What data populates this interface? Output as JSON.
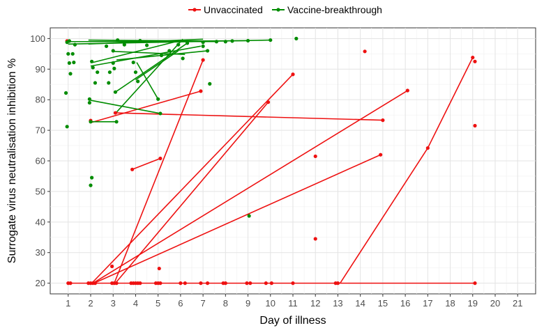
{
  "chart_data": {
    "type": "scatter",
    "xlabel": "Day of illness",
    "ylabel": "Surrogate virus neutralisation inhibition %",
    "xlim": [
      0.2,
      21.8
    ],
    "ylim": [
      16.5,
      103.5
    ],
    "x_ticks": [
      1,
      2,
      3,
      4,
      5,
      6,
      7,
      8,
      9,
      10,
      11,
      12,
      13,
      14,
      15,
      16,
      17,
      18,
      19,
      20,
      21
    ],
    "y_ticks": [
      20,
      30,
      40,
      50,
      60,
      70,
      80,
      90,
      100
    ],
    "grid": true,
    "legend_position": "top",
    "series": [
      {
        "name": "Unvaccinated",
        "color": "#ee1111",
        "points": [
          [
            1.0,
            20
          ],
          [
            1.1,
            20
          ],
          [
            1.9,
            20
          ],
          [
            2.0,
            20
          ],
          [
            2.1,
            20
          ],
          [
            2.2,
            20
          ],
          [
            2.95,
            20
          ],
          [
            3.05,
            20
          ],
          [
            3.15,
            20
          ],
          [
            3.8,
            20
          ],
          [
            3.9,
            20
          ],
          [
            4.0,
            20
          ],
          [
            4.1,
            20
          ],
          [
            4.2,
            20
          ],
          [
            4.9,
            20
          ],
          [
            5.0,
            20
          ],
          [
            5.1,
            20
          ],
          [
            6.0,
            20
          ],
          [
            6.2,
            20
          ],
          [
            6.9,
            20
          ],
          [
            7.2,
            20
          ],
          [
            7.9,
            20
          ],
          [
            8.0,
            20
          ],
          [
            8.95,
            20
          ],
          [
            9.1,
            20
          ],
          [
            9.8,
            20
          ],
          [
            10.05,
            20
          ],
          [
            11.0,
            20
          ],
          [
            12.9,
            20
          ],
          [
            13.0,
            20
          ],
          [
            19.1,
            20
          ],
          [
            2.95,
            25.5
          ],
          [
            5.05,
            24.8
          ],
          [
            3.85,
            57.2
          ],
          [
            5.1,
            60.8
          ],
          [
            12.0,
            34.5
          ],
          [
            12.0,
            61.5
          ],
          [
            14.2,
            95.8
          ],
          [
            16.1,
            83.0
          ],
          [
            19.1,
            92.5
          ],
          [
            19.1,
            71.5
          ],
          [
            19.0,
            93.8
          ],
          [
            17.0,
            64.2
          ],
          [
            14.9,
            62.0
          ],
          [
            15.0,
            73.3
          ],
          [
            11.0,
            88.3
          ],
          [
            9.9,
            79.2
          ],
          [
            7.0,
            93.0
          ],
          [
            6.9,
            82.8
          ],
          [
            2.0,
            73.2
          ],
          [
            3.1,
            75.7
          ],
          [
            0.95,
            99.2
          ]
        ],
        "segments": [
          [
            [
              2.0,
              72.5
            ],
            [
              6.9,
              82.8
            ]
          ],
          [
            [
              3.1,
              75.7
            ],
            [
              15.0,
              73.3
            ]
          ],
          [
            [
              3.85,
              57.2
            ],
            [
              5.1,
              60.8
            ]
          ],
          [
            [
              3.05,
              20
            ],
            [
              7.0,
              93.0
            ]
          ],
          [
            [
              2.05,
              20
            ],
            [
              11.0,
              88.3
            ]
          ],
          [
            [
              2.1,
              20
            ],
            [
              16.1,
              83.0
            ]
          ],
          [
            [
              2.15,
              20
            ],
            [
              14.9,
              62.0
            ]
          ],
          [
            [
              3.1,
              20
            ],
            [
              9.9,
              79.2
            ]
          ],
          [
            [
              13.1,
              20
            ],
            [
              17.0,
              64.2
            ]
          ],
          [
            [
              17.0,
              64.2
            ],
            [
              19.0,
              93.8
            ]
          ],
          [
            [
              1.0,
              20
            ],
            [
              19.1,
              20
            ]
          ]
        ]
      },
      {
        "name": "Vaccine-breakthrough",
        "color": "#008c00",
        "points": [
          [
            0.9,
            82.2
          ],
          [
            0.95,
            71.2
          ],
          [
            1.0,
            95.0
          ],
          [
            1.05,
            92.0
          ],
          [
            1.1,
            88.5
          ],
          [
            1.25,
            92.2
          ],
          [
            1.3,
            98.0
          ],
          [
            1.2,
            95.0
          ],
          [
            0.95,
            98.8
          ],
          [
            1.05,
            99.2
          ],
          [
            1.95,
            80.2
          ],
          [
            1.95,
            79.0
          ],
          [
            2.0,
            72.8
          ],
          [
            2.05,
            54.5
          ],
          [
            2.0,
            52.0
          ],
          [
            2.05,
            92.5
          ],
          [
            2.1,
            90.5
          ],
          [
            2.2,
            85.5
          ],
          [
            2.3,
            89.0
          ],
          [
            2.7,
            97.5
          ],
          [
            2.8,
            85.5
          ],
          [
            2.85,
            89.0
          ],
          [
            3.0,
            92.0
          ],
          [
            3.05,
            90.2
          ],
          [
            3.1,
            82.5
          ],
          [
            3.15,
            72.8
          ],
          [
            3.0,
            96.0
          ],
          [
            3.2,
            99.5
          ],
          [
            3.5,
            98.0
          ],
          [
            3.9,
            92.2
          ],
          [
            4.0,
            89.0
          ],
          [
            4.1,
            86.0
          ],
          [
            4.2,
            99.3
          ],
          [
            4.5,
            97.8
          ],
          [
            5.0,
            80.2
          ],
          [
            5.1,
            75.5
          ],
          [
            5.15,
            94.5
          ],
          [
            5.5,
            96.0
          ],
          [
            5.9,
            98.0
          ],
          [
            6.1,
            93.5
          ],
          [
            6.3,
            98.5
          ],
          [
            7.0,
            98.8
          ],
          [
            7.0,
            97.5
          ],
          [
            7.2,
            96.0
          ],
          [
            7.3,
            85.2
          ],
          [
            7.6,
            99.0
          ],
          [
            8.0,
            99.0
          ],
          [
            8.3,
            99.2
          ],
          [
            9.0,
            99.3
          ],
          [
            9.05,
            42.0
          ],
          [
            10.0,
            99.5
          ],
          [
            11.15,
            100.0
          ]
        ],
        "segments": [
          [
            [
              1.0,
              98.2
            ],
            [
              10.0,
              99.5
            ]
          ],
          [
            [
              1.0,
              99.0
            ],
            [
              7.6,
              99.0
            ]
          ],
          [
            [
              1.9,
              99.5
            ],
            [
              7.0,
              99.2
            ]
          ],
          [
            [
              1.9,
              98.2
            ],
            [
              7.0,
              99.8
            ]
          ],
          [
            [
              2.0,
              91.0
            ],
            [
              6.9,
              97.5
            ]
          ],
          [
            [
              2.1,
              92.2
            ],
            [
              5.9,
              99.2
            ]
          ],
          [
            [
              3.1,
              82.5
            ],
            [
              6.3,
              98.5
            ]
          ],
          [
            [
              3.15,
              93.0
            ],
            [
              7.2,
              96.0
            ]
          ],
          [
            [
              2.0,
              79.8
            ],
            [
              5.1,
              75.5
            ]
          ],
          [
            [
              2.05,
              72.8
            ],
            [
              3.15,
              72.8
            ]
          ],
          [
            [
              3.0,
              95.8
            ],
            [
              6.2,
              94.8
            ]
          ],
          [
            [
              4.05,
              92.2
            ],
            [
              5.0,
              80.2
            ]
          ],
          [
            [
              4.0,
              86.5
            ],
            [
              5.9,
              96.0
            ]
          ],
          [
            [
              3.1,
              75.5
            ],
            [
              6.1,
              99.8
            ]
          ],
          [
            [
              2.0,
              99.0
            ],
            [
              9.0,
              99.3
            ]
          ]
        ]
      }
    ]
  }
}
